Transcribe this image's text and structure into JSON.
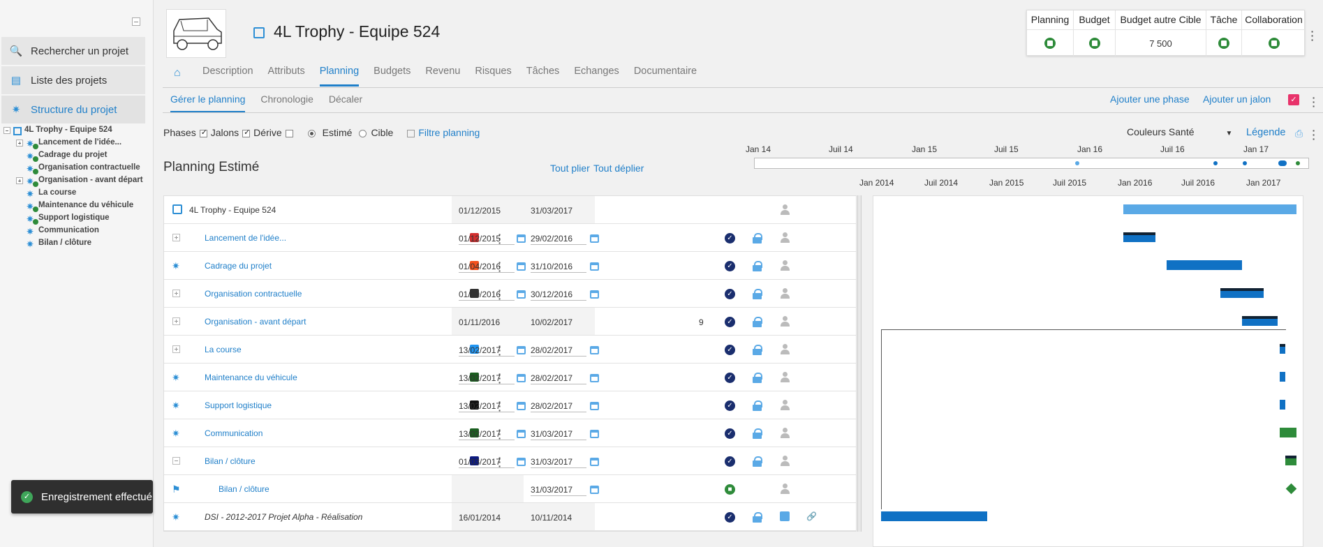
{
  "sidebar": {
    "search": "Rechercher un projet",
    "list": "Liste des projets",
    "structure": "Structure du projet",
    "tree": [
      "4L Trophy - Equipe 524",
      "Lancement de l'idée...",
      "Cadrage du projet",
      "Organisation contractuelle",
      "Organisation - avant départ",
      "La course",
      "Maintenance du véhicule",
      "Support logistique",
      "Communication",
      "Bilan / clôture"
    ]
  },
  "toast": "Enregistrement effectué",
  "project": {
    "title": "4L Trophy - Equipe 524"
  },
  "indicators": {
    "headers": [
      "Planning",
      "Budget",
      "Budget autre Cible",
      "Tâche",
      "Collaboration"
    ],
    "budget_autre": "7 500",
    "status_color": "#2e8b3a"
  },
  "tabs": [
    "Description",
    "Attributs",
    "Planning",
    "Budgets",
    "Revenu",
    "Risques",
    "Tâches",
    "Echanges",
    "Documentaire"
  ],
  "active_tab": "Planning",
  "subtabs": [
    "Gérer le planning",
    "Chronologie",
    "Décaler"
  ],
  "actions": {
    "add_phase": "Ajouter une phase",
    "add_milestone": "Ajouter un jalon"
  },
  "filters": {
    "phases": "Phases",
    "jalons": "Jalons",
    "derive": "Dérive",
    "estime": "Estimé",
    "cible": "Cible",
    "filtre": "Filtre planning",
    "couleurs": "Couleurs Santé",
    "legende": "Légende"
  },
  "planning": {
    "title": "Planning Estimé",
    "tout_plier": "Tout plier",
    "tout_deplier": "Tout déplier"
  },
  "timeline_labels": [
    "Jan 14",
    "Juil 14",
    "Jan 15",
    "Juil 15",
    "Jan 16",
    "Juil 16",
    "Jan 17"
  ],
  "gantt_labels": [
    "Jan 2014",
    "Juil 2014",
    "Jan 2015",
    "Juil 2015",
    "Jan 2016",
    "Juil 2016",
    "Jan 2017"
  ],
  "rows": [
    {
      "name": "4L Trophy - Equipe 524",
      "start": "01/12/2015",
      "end": "31/03/2017",
      "color": "",
      "kind": "root"
    },
    {
      "name": "Lancement de l'idée...",
      "start": "01/12/2015",
      "end": "29/02/2016",
      "color": "#d32f2f",
      "kind": "plus"
    },
    {
      "name": "Cadrage du projet",
      "start": "01/04/2016",
      "end": "31/10/2016",
      "color": "#f4511e",
      "kind": "puzzle"
    },
    {
      "name": "Organisation contractuelle",
      "start": "01/09/2016",
      "end": "30/12/2016",
      "color": "#333333",
      "kind": "plus"
    },
    {
      "name": "Organisation - avant départ",
      "start": "01/11/2016",
      "end": "10/02/2017",
      "color": "#ff00cc",
      "kind": "plus",
      "extra": "9"
    },
    {
      "name": "La course",
      "start": "13/02/2017",
      "end": "28/02/2017",
      "color": "#2196f3",
      "kind": "plus"
    },
    {
      "name": "Maintenance du véhicule",
      "start": "13/02/2017",
      "end": "28/02/2017",
      "color": "#1b5e20",
      "kind": "puzzle"
    },
    {
      "name": "Support logistique",
      "start": "13/02/2017",
      "end": "28/02/2017",
      "color": "#111111",
      "kind": "puzzle"
    },
    {
      "name": "Communication",
      "start": "13/02/2017",
      "end": "31/03/2017",
      "color": "#1b5e20",
      "kind": "puzzle"
    },
    {
      "name": "Bilan / clôture",
      "start": "01/03/2017",
      "end": "31/03/2017",
      "color": "#0d1a80",
      "kind": "minus"
    },
    {
      "name": "Bilan / clôture",
      "start": "",
      "end": "31/03/2017",
      "color": "#0d1a80",
      "kind": "flag"
    },
    {
      "name": "DSI - 2012-2017 Projet Alpha - Réalisation",
      "start": "16/01/2014",
      "end": "10/11/2014",
      "color": "",
      "kind": "puzzle-ext"
    }
  ]
}
